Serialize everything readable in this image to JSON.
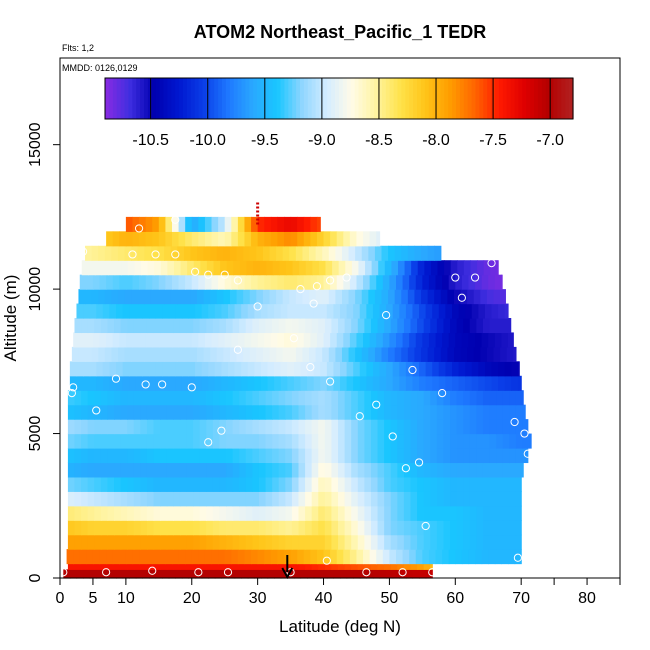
{
  "chart_data": {
    "type": "heatmap",
    "title": "ATOM2 Northeast_Pacific_1 TEDR",
    "subtitle_flights": "Flts: 1,2",
    "subtitle_dates": "MMDD: 0126,0129",
    "xlabel": "Latitude (deg N)",
    "ylabel": "Altitude (m)",
    "xlim": [
      0,
      85
    ],
    "ylim": [
      0,
      18000
    ],
    "x_ticks": [
      0,
      5,
      10,
      20,
      30,
      40,
      50,
      60,
      70,
      80
    ],
    "x_tick_labels": [
      "0",
      "5",
      "10",
      "20",
      "30",
      "40",
      "50",
      "60",
      "70",
      "80"
    ],
    "x_minor_ticks": [
      75,
      85
    ],
    "y_ticks": [
      0,
      5000,
      10000,
      15000
    ],
    "y_tick_labels": [
      "0",
      "5000",
      "10000",
      "15000"
    ],
    "colorbar": {
      "min": -10.9,
      "max": -6.8,
      "ticks": [
        -10.5,
        -10.0,
        -9.5,
        -9.0,
        -8.5,
        -8.0,
        -7.5,
        -7.0
      ],
      "tick_labels": [
        "-10.5",
        "-10.0",
        "-9.5",
        "-9.0",
        "-8.5",
        "-8.0",
        "-7.5",
        "-7.0"
      ],
      "colors": [
        "#8a2be2",
        "#3f2ee0",
        "#0000b0",
        "#0018d0",
        "#0a3ee8",
        "#1e78ff",
        "#2aa8ff",
        "#19c6ff",
        "#8fd6ff",
        "#d4ecff",
        "#fffbe8",
        "#fff4a0",
        "#ffe24a",
        "#ffc418",
        "#ff9d00",
        "#ff6600",
        "#ff1a00",
        "#e00000",
        "#b40000",
        "#b22222"
      ]
    },
    "altitude_bins_m": [
      0,
      300,
      500,
      1000,
      1500,
      2000,
      2500,
      3000,
      3500,
      4000,
      4500,
      5000,
      5500,
      6000,
      6500,
      7000,
      7500,
      8000,
      8500,
      9000,
      9500,
      10000,
      10500,
      11000,
      11500,
      12000,
      12500
    ],
    "latitude_extent_by_bin": [
      [
        0.5,
        56.5
      ],
      [
        1.2,
        56.5
      ],
      [
        1.0,
        70.0
      ],
      [
        1.2,
        70.0
      ],
      [
        1.2,
        70.0
      ],
      [
        1.2,
        70.0
      ],
      [
        1.2,
        70.0
      ],
      [
        1.2,
        70.0
      ],
      [
        1.2,
        70.3
      ],
      [
        1.2,
        71.0
      ],
      [
        1.2,
        71.5
      ],
      [
        1.2,
        71.0
      ],
      [
        1.2,
        70.6
      ],
      [
        1.2,
        70.3
      ],
      [
        1.5,
        70.0
      ],
      [
        1.5,
        69.7
      ],
      [
        1.8,
        69.2
      ],
      [
        2.0,
        68.8
      ],
      [
        2.2,
        68.4
      ],
      [
        2.5,
        68.0
      ],
      [
        2.8,
        67.6
      ],
      [
        3.0,
        67.1
      ],
      [
        3.3,
        66.5
      ],
      [
        3.8,
        57.8
      ],
      [
        7.0,
        48.5
      ],
      [
        10.0,
        39.5
      ]
    ],
    "tedr_log10_by_bin_lat": {
      "latitudes": [
        0,
        5,
        10,
        15,
        20,
        25,
        30,
        35,
        40,
        45,
        50,
        55,
        60,
        65,
        70
      ],
      "rows": [
        [
          -7.0,
          -7.0,
          -7.0,
          -7.0,
          -7.0,
          -7.0,
          -7.0,
          -7.0,
          -7.0,
          -7.0,
          -7.05,
          -7.1,
          -7.1,
          -7.1,
          -7.1
        ],
        [
          -7.4,
          -7.4,
          -7.4,
          -7.4,
          -7.4,
          -7.4,
          -7.4,
          -7.4,
          -7.5,
          -7.6,
          -7.7,
          -7.9,
          -8.4,
          -8.9,
          -9.2
        ],
        [
          -7.7,
          -7.7,
          -7.7,
          -7.7,
          -7.7,
          -7.7,
          -7.8,
          -7.9,
          -8.1,
          -8.5,
          -9.0,
          -9.3,
          -9.4,
          -9.5,
          -9.5
        ],
        [
          -7.9,
          -7.9,
          -7.9,
          -7.9,
          -7.9,
          -8.0,
          -8.1,
          -8.2,
          -8.2,
          -8.6,
          -9.1,
          -9.3,
          -9.4,
          -9.5,
          -9.5
        ],
        [
          -8.1,
          -8.2,
          -8.2,
          -8.3,
          -8.3,
          -8.4,
          -8.4,
          -8.5,
          -8.3,
          -8.7,
          -9.2,
          -9.3,
          -9.4,
          -9.5,
          -9.5
        ],
        [
          -8.4,
          -8.5,
          -8.6,
          -8.7,
          -8.7,
          -8.8,
          -8.9,
          -8.8,
          -8.4,
          -8.8,
          -9.2,
          -9.4,
          -9.4,
          -9.5,
          -9.5
        ],
        [
          -8.9,
          -9.0,
          -9.1,
          -9.2,
          -9.2,
          -9.2,
          -9.2,
          -9.0,
          -8.5,
          -8.9,
          -9.2,
          -9.4,
          -9.5,
          -9.5,
          -9.5
        ],
        [
          -9.2,
          -9.3,
          -9.4,
          -9.5,
          -9.5,
          -9.5,
          -9.4,
          -9.2,
          -8.6,
          -9.0,
          -9.3,
          -9.4,
          -9.5,
          -9.5,
          -9.5
        ],
        [
          -9.5,
          -9.6,
          -9.6,
          -9.6,
          -9.6,
          -9.6,
          -9.4,
          -9.3,
          -8.7,
          -9.1,
          -9.3,
          -9.5,
          -9.6,
          -9.6,
          -9.6
        ],
        [
          -9.4,
          -9.5,
          -9.5,
          -9.4,
          -9.4,
          -9.4,
          -9.3,
          -9.2,
          -8.8,
          -9.2,
          -9.4,
          -9.6,
          -9.7,
          -9.7,
          -9.7
        ],
        [
          -9.2,
          -9.3,
          -9.3,
          -9.3,
          -9.3,
          -9.2,
          -9.2,
          -9.1,
          -8.8,
          -9.2,
          -9.4,
          -9.6,
          -9.7,
          -9.7,
          -9.8
        ],
        [
          -9.1,
          -9.2,
          -9.2,
          -9.3,
          -9.3,
          -9.2,
          -9.1,
          -9.0,
          -8.8,
          -9.2,
          -9.4,
          -9.6,
          -9.7,
          -9.8,
          -9.8
        ],
        [
          -9.4,
          -9.5,
          -9.6,
          -9.6,
          -9.6,
          -9.5,
          -9.4,
          -9.3,
          -9.1,
          -9.3,
          -9.5,
          -9.6,
          -9.7,
          -9.8,
          -9.8
        ],
        [
          -9.3,
          -9.4,
          -9.5,
          -9.5,
          -9.5,
          -9.4,
          -9.3,
          -9.2,
          -9.1,
          -9.3,
          -9.5,
          -9.6,
          -9.8,
          -9.9,
          -9.9
        ],
        [
          -9.5,
          -9.5,
          -9.6,
          -9.6,
          -9.6,
          -9.5,
          -9.4,
          -9.3,
          -9.2,
          -9.4,
          -9.6,
          -9.8,
          -9.9,
          -10.0,
          -10.1
        ],
        [
          -9.1,
          -9.1,
          -9.2,
          -9.2,
          -9.2,
          -9.1,
          -9.0,
          -8.9,
          -9.0,
          -9.3,
          -9.6,
          -9.9,
          -10.2,
          -10.4,
          -10.5
        ],
        [
          -9.0,
          -9.0,
          -9.1,
          -9.1,
          -9.1,
          -9.0,
          -8.9,
          -8.8,
          -9.0,
          -9.4,
          -9.8,
          -10.1,
          -10.4,
          -10.5,
          -10.6
        ],
        [
          -8.9,
          -8.9,
          -9.0,
          -9.0,
          -9.0,
          -8.9,
          -8.8,
          -8.7,
          -8.9,
          -9.3,
          -9.7,
          -10.1,
          -10.4,
          -10.5,
          -10.6
        ],
        [
          -9.1,
          -9.1,
          -9.2,
          -9.2,
          -9.2,
          -9.1,
          -8.9,
          -8.8,
          -8.9,
          -9.2,
          -9.6,
          -10.0,
          -10.4,
          -10.6,
          -10.6
        ],
        [
          -9.3,
          -9.3,
          -9.4,
          -9.4,
          -9.4,
          -9.3,
          -9.1,
          -9.0,
          -9.0,
          -9.2,
          -9.6,
          -10.0,
          -10.4,
          -10.6,
          -10.7
        ],
        [
          -9.5,
          -9.5,
          -9.6,
          -9.6,
          -9.6,
          -9.4,
          -9.2,
          -9.0,
          -8.9,
          -9.2,
          -9.6,
          -10.1,
          -10.5,
          -10.7,
          -10.8
        ],
        [
          -9.2,
          -9.2,
          -9.3,
          -9.2,
          -9.0,
          -8.7,
          -8.5,
          -8.4,
          -8.5,
          -9.0,
          -9.6,
          -10.2,
          -10.6,
          -10.8,
          -10.9
        ],
        [
          -8.8,
          -8.8,
          -8.8,
          -8.7,
          -8.4,
          -8.1,
          -8.0,
          -8.1,
          -8.3,
          -8.8,
          -9.5,
          -10.2,
          -10.6,
          -10.8,
          -10.9
        ],
        [
          -8.6,
          -8.5,
          -8.4,
          -8.3,
          -8.1,
          -8.0,
          -8.1,
          -8.3,
          -8.6,
          -9.0,
          -9.4,
          -9.6,
          -9.7,
          -9.7,
          -9.7
        ],
        [
          -8.3,
          -8.2,
          -8.0,
          -8.1,
          -8.4,
          -8.6,
          -8.0,
          -7.8,
          -8.2,
          -8.7,
          -9.0,
          -9.2,
          -9.3,
          -9.3,
          -9.3
        ],
        [
          -8.0,
          -7.8,
          -7.6,
          -7.9,
          -9.6,
          -9.0,
          -7.5,
          -7.3,
          -7.6,
          -8.0,
          -8.5,
          -8.8,
          -9.0,
          -9.0,
          -9.0
        ]
      ]
    },
    "circle_markers": [
      {
        "lat": 0.5,
        "alt": 200
      },
      {
        "lat": 7.0,
        "alt": 200
      },
      {
        "lat": 14.0,
        "alt": 250
      },
      {
        "lat": 21.0,
        "alt": 200
      },
      {
        "lat": 25.5,
        "alt": 200
      },
      {
        "lat": 35.0,
        "alt": 200
      },
      {
        "lat": 46.5,
        "alt": 200
      },
      {
        "lat": 52.0,
        "alt": 200
      },
      {
        "lat": 56.5,
        "alt": 200
      },
      {
        "lat": 40.5,
        "alt": 600
      },
      {
        "lat": 69.5,
        "alt": 700
      },
      {
        "lat": 55.5,
        "alt": 1800
      },
      {
        "lat": 52.5,
        "alt": 3800
      },
      {
        "lat": 54.5,
        "alt": 4000
      },
      {
        "lat": 71.0,
        "alt": 4300
      },
      {
        "lat": 50.5,
        "alt": 4900
      },
      {
        "lat": 22.5,
        "alt": 4700
      },
      {
        "lat": 24.5,
        "alt": 5100
      },
      {
        "lat": 69.0,
        "alt": 5400
      },
      {
        "lat": 70.5,
        "alt": 5000
      },
      {
        "lat": 5.5,
        "alt": 5800
      },
      {
        "lat": 45.5,
        "alt": 5600
      },
      {
        "lat": 48.0,
        "alt": 6000
      },
      {
        "lat": 58.0,
        "alt": 6400
      },
      {
        "lat": 1.8,
        "alt": 6400
      },
      {
        "lat": 2.0,
        "alt": 6600
      },
      {
        "lat": 8.5,
        "alt": 6900
      },
      {
        "lat": 13.0,
        "alt": 6700
      },
      {
        "lat": 15.5,
        "alt": 6700
      },
      {
        "lat": 20.0,
        "alt": 6600
      },
      {
        "lat": 41.0,
        "alt": 6800
      },
      {
        "lat": 38.0,
        "alt": 7300
      },
      {
        "lat": 53.5,
        "alt": 7200
      },
      {
        "lat": 27.0,
        "alt": 7900
      },
      {
        "lat": 35.5,
        "alt": 8300
      },
      {
        "lat": 49.5,
        "alt": 9100
      },
      {
        "lat": 30.0,
        "alt": 9400
      },
      {
        "lat": 38.5,
        "alt": 9500
      },
      {
        "lat": 61.0,
        "alt": 9700
      },
      {
        "lat": 36.5,
        "alt": 10000
      },
      {
        "lat": 39.0,
        "alt": 10100
      },
      {
        "lat": 41.0,
        "alt": 10300
      },
      {
        "lat": 43.5,
        "alt": 10400
      },
      {
        "lat": 60.0,
        "alt": 10400
      },
      {
        "lat": 63.0,
        "alt": 10400
      },
      {
        "lat": 27.0,
        "alt": 10300
      },
      {
        "lat": 20.5,
        "alt": 10600
      },
      {
        "lat": 22.5,
        "alt": 10500
      },
      {
        "lat": 25.0,
        "alt": 10500
      },
      {
        "lat": 11.0,
        "alt": 11200
      },
      {
        "lat": 14.5,
        "alt": 11200
      },
      {
        "lat": 17.5,
        "alt": 11200
      },
      {
        "lat": 3.5,
        "alt": 11300
      },
      {
        "lat": 12.0,
        "alt": 12100
      },
      {
        "lat": 17.5,
        "alt": 12400
      },
      {
        "lat": 65.5,
        "alt": 10900
      }
    ],
    "arrow_marker_lat": 34.5,
    "top_dash_marker_lat": 30.0
  }
}
